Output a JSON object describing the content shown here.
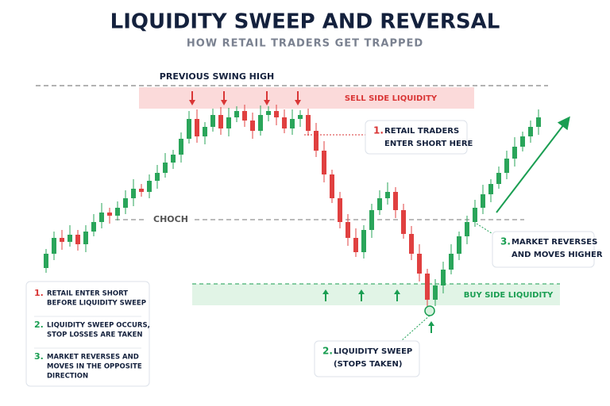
{
  "header": {
    "title": "LIQUIDITY SWEEP AND REVERSAL",
    "subtitle": "HOW RETAIL TRADERS GET TRAPPED"
  },
  "labels": {
    "previous_swing_high": "PREVIOUS SWING HIGH",
    "sell_side": "SELL SIDE LIQUIDITY",
    "choch": "CHOCH",
    "buy_side": "BUY SIDE LIQUIDITY"
  },
  "callouts": [
    {
      "number": "1.",
      "lines": [
        "RETAIL TRADERS",
        "ENTER SHORT HERE"
      ]
    },
    {
      "number": "2.",
      "lines": [
        "LIQUIDITY SWEEP",
        "(STOPS TAKEN)"
      ]
    },
    {
      "number": "3.",
      "lines": [
        "MARKET REVERSES",
        "AND MOVES HIGHER"
      ]
    }
  ],
  "legend": [
    {
      "number": "1.",
      "lines": [
        "RETAIL ENTER SHORT",
        "BEFORE LIQUIDITY SWEEP"
      ]
    },
    {
      "number": "2.",
      "lines": [
        "LIQUIDITY SWEEP OCCURS,",
        "STOP LOSSES ARE TAKEN"
      ]
    },
    {
      "number": "3.",
      "lines": [
        "MARKET REVERSES AND",
        "MOVES IN THE OPPOSITE",
        "DIRECTION"
      ]
    }
  ]
}
